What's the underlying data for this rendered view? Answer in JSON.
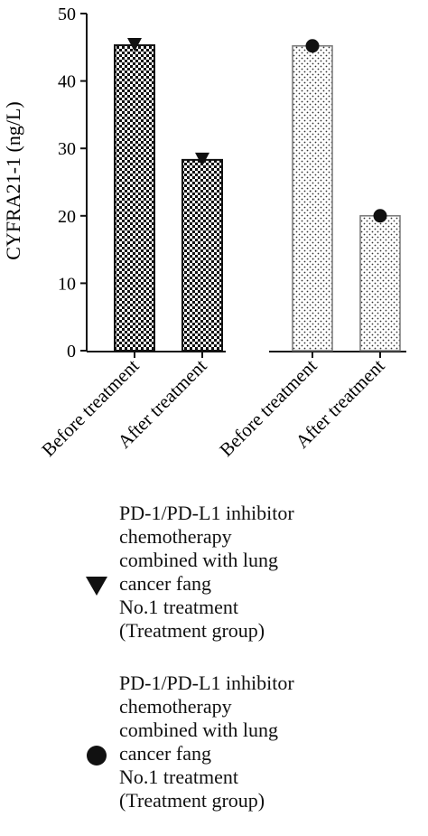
{
  "chart_data": {
    "type": "bar",
    "ylabel": "CYFRA21-1 (ng/L)",
    "ylim": [
      0,
      50
    ],
    "yticks": [
      0,
      10,
      20,
      30,
      40,
      50
    ],
    "grid": false,
    "legend_position": "bottom",
    "categories": [
      "Before treatment",
      "After treatment",
      "Before treatment",
      "After treatment"
    ],
    "groups": [
      {
        "marker": "triangle-down",
        "fill_pattern": "checkerboard",
        "values": [
          45.3,
          28.3
        ]
      },
      {
        "marker": "circle",
        "fill_pattern": "dots",
        "values": [
          45.2,
          20.0
        ]
      }
    ],
    "legend": [
      {
        "marker": "triangle-down",
        "label": "PD-1/PD-L1 inhibitor\nchemotherapy\ncombined with lung\ncancer fang\nNo.1 treatment\n(Treatment group)"
      },
      {
        "marker": "circle",
        "label": "PD-1/PD-L1 inhibitor\nchemotherapy\ncombined with lung\ncancer fang\nNo.1 treatment\n(Treatment group)"
      }
    ]
  }
}
